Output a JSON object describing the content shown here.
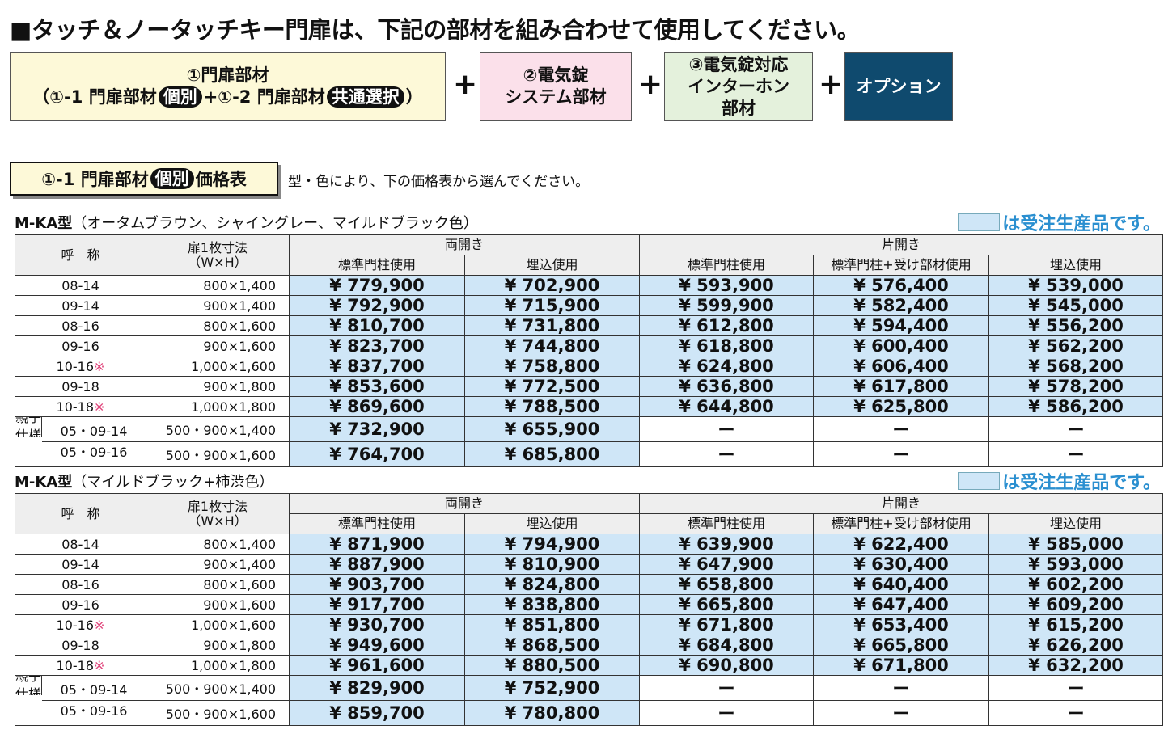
{
  "header": {
    "title": "■タッチ＆ノータッチキー門扉は、下記の部材を組み合わせて使用してください。"
  },
  "components": {
    "plus": "+",
    "gate": {
      "line1": "①門扉部材",
      "open": "（①-1 門扉部材",
      "badge1": "個別",
      "mid": "+①-2 門扉部材",
      "badge2": "共通選択",
      "close": "）"
    },
    "lock": {
      "lines": [
        "②電気錠",
        "システム部材"
      ]
    },
    "intercom": {
      "lines": [
        "③電気錠対応",
        "インターホン",
        "部材"
      ]
    },
    "option": {
      "label": "オプション"
    }
  },
  "section": {
    "label": "①-1 門扉部材",
    "badge": "個別",
    "suffix": "価格表",
    "note": "型・色により、下の価格表から選んでください。"
  },
  "tables": [
    {
      "title": "M-KA型",
      "subtitle": "（オータムブラウン、シャイングレー、マイルドブラック色）",
      "legend": "は受注生産品です。",
      "header": {
        "name": "呼　称",
        "size": "扉1枚寸法",
        "size_unit": "（W×H）",
        "double": "両開き",
        "single": "片開き",
        "cols": [
          "標準門柱使用",
          "埋込使用",
          "標準門柱使用",
          "標準門柱+受け部材使用",
          "埋込使用"
        ]
      },
      "rows": [
        {
          "code": "08-14",
          "size": "800×1,400",
          "prices": [
            "¥ 779,900",
            "¥ 702,900",
            "¥ 593,900",
            "¥ 576,400",
            "¥ 539,000"
          ]
        },
        {
          "code": "09-14",
          "size": "900×1,400",
          "prices": [
            "¥ 792,900",
            "¥ 715,900",
            "¥ 599,900",
            "¥ 582,400",
            "¥ 545,000"
          ]
        },
        {
          "code": "08-16",
          "size": "800×1,600",
          "prices": [
            "¥ 810,700",
            "¥ 731,800",
            "¥ 612,800",
            "¥ 594,400",
            "¥ 556,200"
          ]
        },
        {
          "code": "09-16",
          "size": "900×1,600",
          "prices": [
            "¥ 823,700",
            "¥ 744,800",
            "¥ 618,800",
            "¥ 600,400",
            "¥ 562,200"
          ]
        },
        {
          "code": "10-16",
          "mark": "※",
          "size": "1,000×1,600",
          "prices": [
            "¥ 837,700",
            "¥ 758,800",
            "¥ 624,800",
            "¥ 606,400",
            "¥ 568,200"
          ]
        },
        {
          "code": "09-18",
          "size": "900×1,800",
          "prices": [
            "¥ 853,600",
            "¥ 772,500",
            "¥ 636,800",
            "¥ 617,800",
            "¥ 578,200"
          ]
        },
        {
          "code": "10-18",
          "mark": "※",
          "size": "1,000×1,800",
          "prices": [
            "¥ 869,600",
            "¥ 788,500",
            "¥ 644,800",
            "¥ 625,800",
            "¥ 586,200"
          ]
        }
      ],
      "group": {
        "lines": [
          "親子",
          "仕様"
        ],
        "rows": [
          {
            "code": "05・09-14",
            "size": "500・900×1,400",
            "prices": [
              "¥ 732,900",
              "¥ 655,900",
              "ー",
              "ー",
              "ー"
            ]
          },
          {
            "code": "05・09-16",
            "size": "500・900×1,600",
            "prices": [
              "¥ 764,700",
              "¥ 685,800",
              "ー",
              "ー",
              "ー"
            ]
          }
        ]
      }
    },
    {
      "title": "M-KA型",
      "subtitle": "（マイルドブラック+柿渋色）",
      "legend": "は受注生産品です。",
      "header": {
        "name": "呼　称",
        "size": "扉1枚寸法",
        "size_unit": "（W×H）",
        "double": "両開き",
        "single": "片開き",
        "cols": [
          "標準門柱使用",
          "埋込使用",
          "標準門柱使用",
          "標準門柱+受け部材使用",
          "埋込使用"
        ]
      },
      "rows": [
        {
          "code": "08-14",
          "size": "800×1,400",
          "prices": [
            "¥ 871,900",
            "¥ 794,900",
            "¥ 639,900",
            "¥ 622,400",
            "¥ 585,000"
          ]
        },
        {
          "code": "09-14",
          "size": "900×1,400",
          "prices": [
            "¥ 887,900",
            "¥ 810,900",
            "¥ 647,900",
            "¥ 630,400",
            "¥ 593,000"
          ]
        },
        {
          "code": "08-16",
          "size": "800×1,600",
          "prices": [
            "¥ 903,700",
            "¥ 824,800",
            "¥ 658,800",
            "¥ 640,400",
            "¥ 602,200"
          ]
        },
        {
          "code": "09-16",
          "size": "900×1,600",
          "prices": [
            "¥ 917,700",
            "¥ 838,800",
            "¥ 665,800",
            "¥ 647,400",
            "¥ 609,200"
          ]
        },
        {
          "code": "10-16",
          "mark": "※",
          "size": "1,000×1,600",
          "prices": [
            "¥ 930,700",
            "¥ 851,800",
            "¥ 671,800",
            "¥ 653,400",
            "¥ 615,200"
          ]
        },
        {
          "code": "09-18",
          "size": "900×1,800",
          "prices": [
            "¥ 949,600",
            "¥ 868,500",
            "¥ 684,800",
            "¥ 665,800",
            "¥ 626,200"
          ]
        },
        {
          "code": "10-18",
          "mark": "※",
          "size": "1,000×1,800",
          "prices": [
            "¥ 961,600",
            "¥ 880,500",
            "¥ 690,800",
            "¥ 671,800",
            "¥ 632,200"
          ]
        }
      ],
      "group": {
        "lines": [
          "親子",
          "仕様"
        ],
        "rows": [
          {
            "code": "05・09-14",
            "size": "500・900×1,400",
            "prices": [
              "¥ 829,900",
              "¥ 752,900",
              "ー",
              "ー",
              "ー"
            ]
          },
          {
            "code": "05・09-16",
            "size": "500・900×1,600",
            "prices": [
              "¥ 859,700",
              "¥ 780,800",
              "ー",
              "ー",
              "ー"
            ]
          }
        ]
      }
    }
  ]
}
